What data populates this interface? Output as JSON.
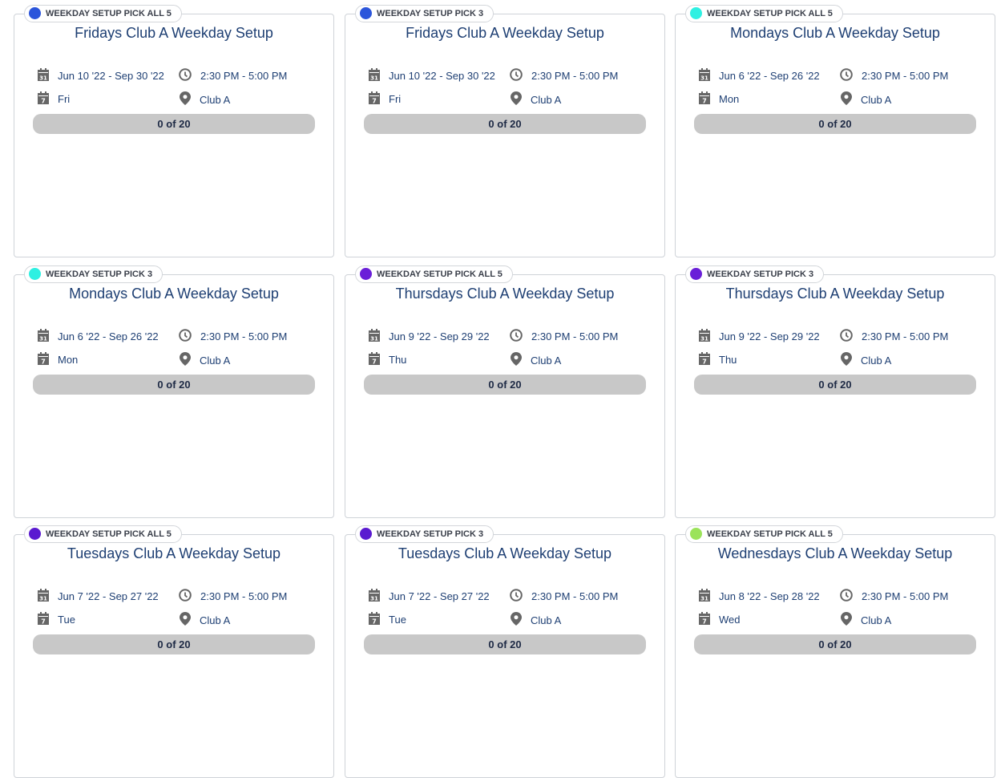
{
  "cards": [
    {
      "badge": "WEEKDAY SETUP PICK ALL 5",
      "color": "#2b55db",
      "title": "Fridays Club A Weekday Setup",
      "dates": "Jun 10 '22 - Sep 30 '22",
      "time": "2:30 PM - 5:00 PM",
      "day": "Fri",
      "location": "Club A",
      "progress": "0 of 20"
    },
    {
      "badge": "WEEKDAY SETUP PICK 3",
      "color": "#2b55db",
      "title": "Fridays Club A Weekday Setup",
      "dates": "Jun 10 '22 - Sep 30 '22",
      "time": "2:30 PM - 5:00 PM",
      "day": "Fri",
      "location": "Club A",
      "progress": "0 of 20"
    },
    {
      "badge": "WEEKDAY SETUP PICK ALL 5",
      "color": "#2ef0e2",
      "title": "Mondays Club A Weekday Setup",
      "dates": "Jun 6 '22 - Sep 26 '22",
      "time": "2:30 PM - 5:00 PM",
      "day": "Mon",
      "location": "Club A",
      "progress": "0 of 20"
    },
    {
      "badge": "WEEKDAY SETUP PICK 3",
      "color": "#2ef0e2",
      "title": "Mondays Club A Weekday Setup",
      "dates": "Jun 6 '22 - Sep 26 '22",
      "time": "2:30 PM - 5:00 PM",
      "day": "Mon",
      "location": "Club A",
      "progress": "0 of 20"
    },
    {
      "badge": "WEEKDAY SETUP PICK ALL 5",
      "color": "#6a1fd8",
      "title": "Thursdays Club A Weekday Setup",
      "dates": "Jun 9 '22 - Sep 29 '22",
      "time": "2:30 PM - 5:00 PM",
      "day": "Thu",
      "location": "Club A",
      "progress": "0 of 20"
    },
    {
      "badge": "WEEKDAY SETUP PICK 3",
      "color": "#6a1fd8",
      "title": "Thursdays Club A Weekday Setup",
      "dates": "Jun 9 '22 - Sep 29 '22",
      "time": "2:30 PM - 5:00 PM",
      "day": "Thu",
      "location": "Club A",
      "progress": "0 of 20"
    },
    {
      "badge": "WEEKDAY SETUP PICK ALL 5",
      "color": "#5a1ad0",
      "title": "Tuesdays Club A Weekday Setup",
      "dates": "Jun 7 '22 - Sep 27 '22",
      "time": "2:30 PM - 5:00 PM",
      "day": "Tue",
      "location": "Club A",
      "progress": "0 of 20"
    },
    {
      "badge": "WEEKDAY SETUP PICK 3",
      "color": "#5a1ad0",
      "title": "Tuesdays Club A Weekday Setup",
      "dates": "Jun 7 '22 - Sep 27 '22",
      "time": "2:30 PM - 5:00 PM",
      "day": "Tue",
      "location": "Club A",
      "progress": "0 of 20"
    },
    {
      "badge": "WEEKDAY SETUP PICK ALL 5",
      "color": "#9be35a",
      "title": "Wednesdays Club A Weekday Setup",
      "dates": "Jun 8 '22 - Sep 28 '22",
      "time": "2:30 PM - 5:00 PM",
      "day": "Wed",
      "location": "Club A",
      "progress": "0 of 20"
    }
  ]
}
